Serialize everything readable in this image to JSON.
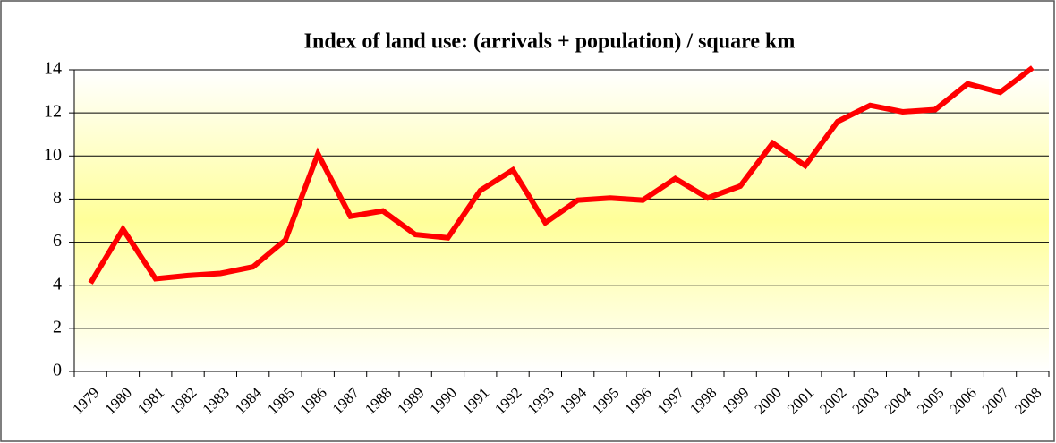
{
  "chart_data": {
    "type": "line",
    "title": "Index of land use: (arrivals + population) / square km",
    "categories": [
      "1979",
      "1980",
      "1981",
      "1982",
      "1983",
      "1984",
      "1985",
      "1986",
      "1987",
      "1988",
      "1989",
      "1990",
      "1991",
      "1992",
      "1993",
      "1994",
      "1995",
      "1996",
      "1997",
      "1998",
      "1999",
      "2000",
      "2001",
      "2002",
      "2003",
      "2004",
      "2005",
      "2006",
      "2007",
      "2008"
    ],
    "series": [
      {
        "name": "Index of land use",
        "color": "#ff0000",
        "values": [
          4.1,
          6.6,
          4.3,
          4.45,
          4.55,
          4.85,
          6.1,
          10.1,
          7.2,
          7.45,
          6.35,
          6.2,
          8.4,
          9.35,
          6.9,
          7.95,
          8.05,
          7.95,
          8.95,
          8.05,
          8.6,
          10.6,
          9.55,
          11.6,
          12.35,
          12.05,
          12.15,
          13.35,
          12.95,
          14.1
        ]
      }
    ],
    "ylim": [
      0,
      14
    ],
    "yticks": [
      0,
      2,
      4,
      6,
      8,
      10,
      12,
      14
    ],
    "grid": true
  }
}
